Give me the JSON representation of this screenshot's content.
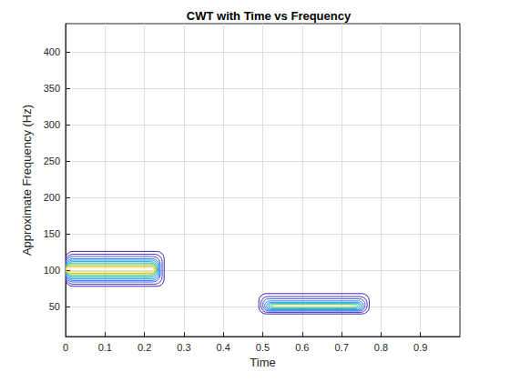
{
  "chart_data": {
    "type": "contour",
    "title": "CWT with Time vs Frequency",
    "x_label": "Time",
    "y_label": "Approximate Frequency (Hz)",
    "xlim": [
      0,
      1
    ],
    "xticks": [
      0,
      0.1,
      0.2,
      0.3,
      0.4,
      0.5,
      0.6,
      0.7,
      0.8,
      0.9
    ],
    "ylim": [
      9,
      439
    ],
    "yticks": [
      50,
      100,
      150,
      200,
      250,
      300,
      350,
      400
    ],
    "grid": true,
    "contours": [
      {
        "t": [
          0,
          0.25
        ],
        "f": [
          78,
          126
        ],
        "color": "#3e26a8"
      },
      {
        "t": [
          0,
          0.245
        ],
        "f": [
          81,
          122
        ],
        "color": "#4536d4"
      },
      {
        "t": [
          0,
          0.24
        ],
        "f": [
          84,
          119
        ],
        "color": "#4757f0"
      },
      {
        "t": [
          0,
          0.238
        ],
        "f": [
          86,
          116
        ],
        "color": "#3a7bf8"
      },
      {
        "t": [
          0,
          0.236
        ],
        "f": [
          88,
          114
        ],
        "color": "#2a9aee"
      },
      {
        "t": [
          0,
          0.234
        ],
        "f": [
          90,
          112
        ],
        "color": "#14b4d0"
      },
      {
        "t": [
          0,
          0.232
        ],
        "f": [
          92,
          110
        ],
        "color": "#2dc4a4"
      },
      {
        "t": [
          0,
          0.23
        ],
        "f": [
          94,
          108
        ],
        "color": "#7fcb64"
      },
      {
        "t": [
          0,
          0.228
        ],
        "f": [
          96,
          106
        ],
        "color": "#d4bb35"
      },
      {
        "t": [
          0,
          0.226
        ],
        "f": [
          98,
          104
        ],
        "color": "#fad22c"
      },
      {
        "t": [
          0.49,
          0.77
        ],
        "f": [
          40,
          68
        ],
        "color": "#3e26a8"
      },
      {
        "t": [
          0.495,
          0.765
        ],
        "f": [
          42,
          64
        ],
        "color": "#4536d4"
      },
      {
        "t": [
          0.5,
          0.76
        ],
        "f": [
          44,
          61
        ],
        "color": "#4757f0"
      },
      {
        "t": [
          0.505,
          0.755
        ],
        "f": [
          45,
          58
        ],
        "color": "#3a7bf8"
      },
      {
        "t": [
          0.51,
          0.75
        ],
        "f": [
          46,
          56
        ],
        "color": "#2a9aee"
      },
      {
        "t": [
          0.515,
          0.745
        ],
        "f": [
          47,
          55
        ],
        "color": "#14b4d0"
      },
      {
        "t": [
          0.52,
          0.74
        ],
        "f": [
          48,
          54
        ],
        "color": "#2dc4a4"
      },
      {
        "t": [
          0.525,
          0.735
        ],
        "f": [
          49,
          53
        ],
        "color": "#7fcb64"
      }
    ]
  }
}
